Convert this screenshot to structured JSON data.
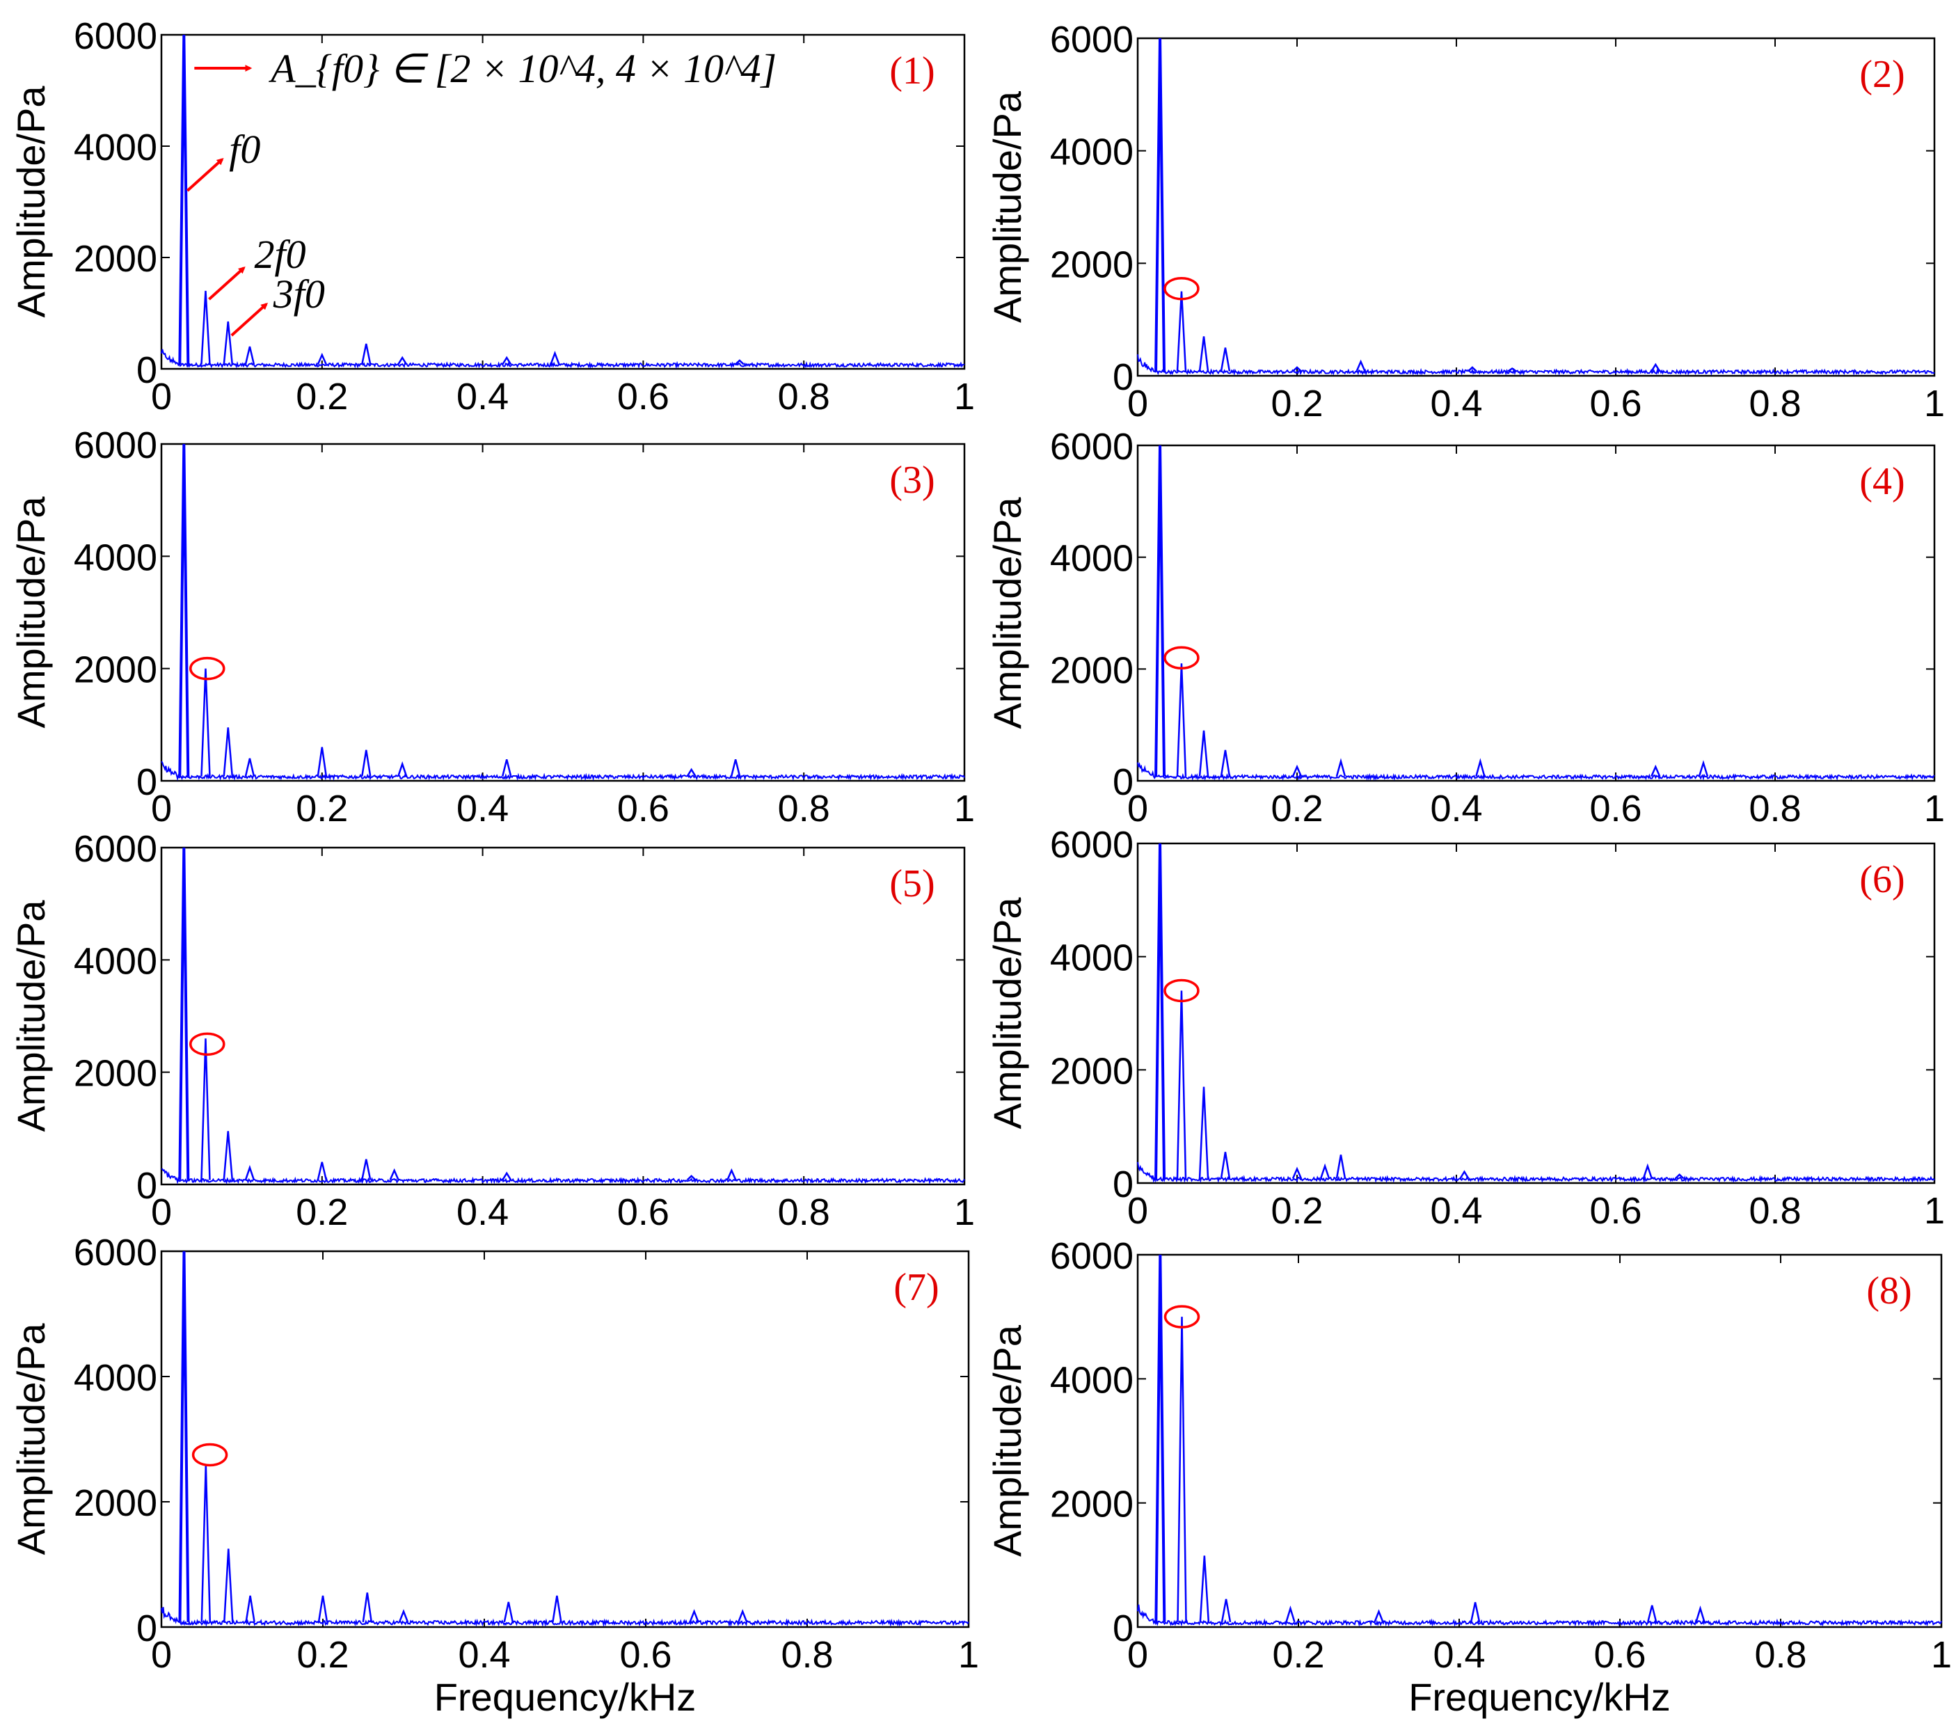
{
  "figure": {
    "colors": {
      "spectrum": "#0000ff",
      "annotation": "#ff0000",
      "axis": "#000000",
      "label": "#e00000"
    }
  },
  "chart_data": [
    {
      "type": "line",
      "panel_label": "(1)",
      "ylabel": "Amplitude/Pa",
      "xlabel": "",
      "xlim": [
        0,
        1
      ],
      "ylim": [
        0,
        6000
      ],
      "xticks": [
        "0",
        "0.2",
        "0.4",
        "0.6",
        "0.8",
        "1"
      ],
      "yticks": [
        "0",
        "2000",
        "4000",
        "6000"
      ],
      "peaks": [
        {
          "x": 0.028,
          "y": 6000
        },
        {
          "x": 0.055,
          "y": 1400
        },
        {
          "x": 0.083,
          "y": 850
        },
        {
          "x": 0.11,
          "y": 400
        },
        {
          "x": 0.2,
          "y": 250
        },
        {
          "x": 0.255,
          "y": 450
        },
        {
          "x": 0.3,
          "y": 200
        },
        {
          "x": 0.43,
          "y": 200
        },
        {
          "x": 0.49,
          "y": 280
        },
        {
          "x": 0.72,
          "y": 150
        }
      ],
      "annotations": [
        {
          "text": "A_{f0} ∈ [2 × 10^4, 4 × 10^4]",
          "x": 0.028,
          "y": 5400
        },
        {
          "text": "f0",
          "x": 0.028,
          "y": 3200
        },
        {
          "text": "2f0",
          "x": 0.055,
          "y": 1250
        },
        {
          "text": "3f0",
          "x": 0.083,
          "y": 600
        }
      ],
      "circle": null
    },
    {
      "type": "line",
      "panel_label": "(2)",
      "ylabel": "Amplitude/Pa",
      "xlabel": "",
      "xlim": [
        0,
        1
      ],
      "ylim": [
        0,
        6000
      ],
      "xticks": [
        "0",
        "0.2",
        "0.4",
        "0.6",
        "0.8",
        "1"
      ],
      "yticks": [
        "0",
        "2000",
        "4000",
        "6000"
      ],
      "peaks": [
        {
          "x": 0.028,
          "y": 6000
        },
        {
          "x": 0.055,
          "y": 1500
        },
        {
          "x": 0.083,
          "y": 700
        },
        {
          "x": 0.11,
          "y": 500
        },
        {
          "x": 0.2,
          "y": 150
        },
        {
          "x": 0.28,
          "y": 250
        },
        {
          "x": 0.42,
          "y": 150
        },
        {
          "x": 0.47,
          "y": 130
        },
        {
          "x": 0.65,
          "y": 200
        }
      ],
      "annotations": [],
      "circle": {
        "x": 0.055,
        "y": 1550
      }
    },
    {
      "type": "line",
      "panel_label": "(3)",
      "ylabel": "Amplitude/Pa",
      "xlabel": "",
      "xlim": [
        0,
        1
      ],
      "ylim": [
        0,
        6000
      ],
      "xticks": [
        "0",
        "0.2",
        "0.4",
        "0.6",
        "0.8",
        "1"
      ],
      "yticks": [
        "0",
        "2000",
        "4000",
        "6000"
      ],
      "peaks": [
        {
          "x": 0.028,
          "y": 6000
        },
        {
          "x": 0.055,
          "y": 2000
        },
        {
          "x": 0.083,
          "y": 950
        },
        {
          "x": 0.11,
          "y": 400
        },
        {
          "x": 0.2,
          "y": 600
        },
        {
          "x": 0.255,
          "y": 550
        },
        {
          "x": 0.3,
          "y": 300
        },
        {
          "x": 0.43,
          "y": 380
        },
        {
          "x": 0.66,
          "y": 200
        },
        {
          "x": 0.715,
          "y": 380
        }
      ],
      "annotations": [],
      "circle": {
        "x": 0.057,
        "y": 2000
      }
    },
    {
      "type": "line",
      "panel_label": "(4)",
      "ylabel": "Amplitude/Pa",
      "xlabel": "",
      "xlim": [
        0,
        1
      ],
      "ylim": [
        0,
        6000
      ],
      "xticks": [
        "0",
        "0.2",
        "0.4",
        "0.6",
        "0.8",
        "1"
      ],
      "yticks": [
        "0",
        "2000",
        "4000",
        "6000"
      ],
      "peaks": [
        {
          "x": 0.028,
          "y": 6000
        },
        {
          "x": 0.055,
          "y": 2100
        },
        {
          "x": 0.083,
          "y": 900
        },
        {
          "x": 0.11,
          "y": 550
        },
        {
          "x": 0.2,
          "y": 250
        },
        {
          "x": 0.255,
          "y": 350
        },
        {
          "x": 0.43,
          "y": 350
        },
        {
          "x": 0.65,
          "y": 250
        },
        {
          "x": 0.71,
          "y": 320
        }
      ],
      "annotations": [],
      "circle": {
        "x": 0.055,
        "y": 2200
      }
    },
    {
      "type": "line",
      "panel_label": "(5)",
      "ylabel": "Amplitude/Pa",
      "xlabel": "",
      "xlim": [
        0,
        1
      ],
      "ylim": [
        0,
        6000
      ],
      "xticks": [
        "0",
        "0.2",
        "0.4",
        "0.6",
        "0.8",
        "1"
      ],
      "yticks": [
        "0",
        "2000",
        "4000",
        "6000"
      ],
      "peaks": [
        {
          "x": 0.028,
          "y": 6000
        },
        {
          "x": 0.055,
          "y": 2600
        },
        {
          "x": 0.083,
          "y": 950
        },
        {
          "x": 0.11,
          "y": 300
        },
        {
          "x": 0.2,
          "y": 400
        },
        {
          "x": 0.255,
          "y": 450
        },
        {
          "x": 0.29,
          "y": 250
        },
        {
          "x": 0.43,
          "y": 200
        },
        {
          "x": 0.66,
          "y": 150
        },
        {
          "x": 0.71,
          "y": 250
        }
      ],
      "annotations": [],
      "circle": {
        "x": 0.057,
        "y": 2500
      }
    },
    {
      "type": "line",
      "panel_label": "(6)",
      "ylabel": "Amplitude/Pa",
      "xlabel": "",
      "xlim": [
        0,
        1
      ],
      "ylim": [
        0,
        6000
      ],
      "xticks": [
        "0",
        "0.2",
        "0.4",
        "0.6",
        "0.8",
        "1"
      ],
      "yticks": [
        "0",
        "2000",
        "4000",
        "6000"
      ],
      "peaks": [
        {
          "x": 0.028,
          "y": 6000
        },
        {
          "x": 0.055,
          "y": 3400
        },
        {
          "x": 0.083,
          "y": 1700
        },
        {
          "x": 0.11,
          "y": 550
        },
        {
          "x": 0.2,
          "y": 250
        },
        {
          "x": 0.235,
          "y": 300
        },
        {
          "x": 0.255,
          "y": 500
        },
        {
          "x": 0.41,
          "y": 200
        },
        {
          "x": 0.64,
          "y": 300
        },
        {
          "x": 0.68,
          "y": 150
        }
      ],
      "annotations": [],
      "circle": {
        "x": 0.055,
        "y": 3400
      }
    },
    {
      "type": "line",
      "panel_label": "(7)",
      "ylabel": "Amplitude/Pa",
      "xlabel": "Frequency/kHz",
      "xlim": [
        0,
        1
      ],
      "ylim": [
        0,
        6000
      ],
      "xticks": [
        "0",
        "0.2",
        "0.4",
        "0.6",
        "0.8",
        "1"
      ],
      "yticks": [
        "0",
        "2000",
        "4000",
        "6000"
      ],
      "peaks": [
        {
          "x": 0.028,
          "y": 6000
        },
        {
          "x": 0.055,
          "y": 2600
        },
        {
          "x": 0.083,
          "y": 1250
        },
        {
          "x": 0.11,
          "y": 500
        },
        {
          "x": 0.2,
          "y": 500
        },
        {
          "x": 0.255,
          "y": 550
        },
        {
          "x": 0.3,
          "y": 250
        },
        {
          "x": 0.43,
          "y": 400
        },
        {
          "x": 0.49,
          "y": 500
        },
        {
          "x": 0.66,
          "y": 250
        },
        {
          "x": 0.72,
          "y": 250
        }
      ],
      "annotations": [],
      "circle": {
        "x": 0.06,
        "y": 2750
      }
    },
    {
      "type": "line",
      "panel_label": "(8)",
      "ylabel": "Amplitude/Pa",
      "xlabel": "Frequency/kHz",
      "xlim": [
        0,
        1
      ],
      "ylim": [
        0,
        6000
      ],
      "xticks": [
        "0",
        "0.2",
        "0.4",
        "0.6",
        "0.8",
        "1"
      ],
      "yticks": [
        "0",
        "2000",
        "4000",
        "6000"
      ],
      "peaks": [
        {
          "x": 0.028,
          "y": 6000
        },
        {
          "x": 0.055,
          "y": 5000
        },
        {
          "x": 0.083,
          "y": 1150
        },
        {
          "x": 0.11,
          "y": 450
        },
        {
          "x": 0.19,
          "y": 300
        },
        {
          "x": 0.3,
          "y": 250
        },
        {
          "x": 0.42,
          "y": 400
        },
        {
          "x": 0.64,
          "y": 350
        },
        {
          "x": 0.7,
          "y": 300
        }
      ],
      "annotations": [],
      "circle": {
        "x": 0.055,
        "y": 5000
      }
    }
  ]
}
